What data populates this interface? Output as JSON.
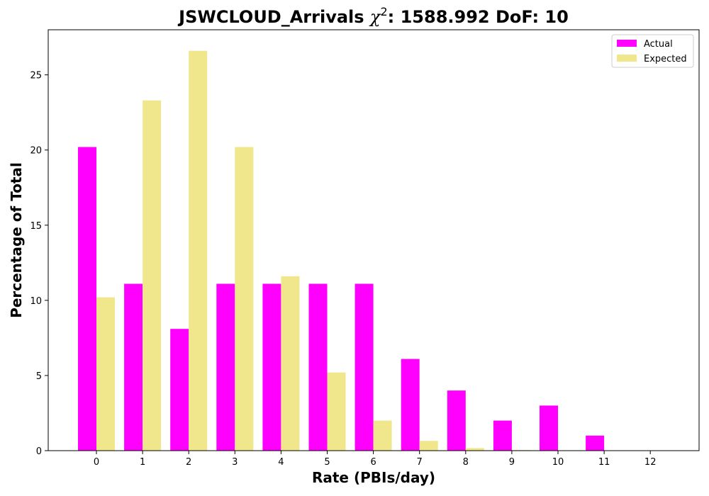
{
  "chart_data": {
    "type": "bar",
    "title_main": "JSWCLOUD_Arrivals ",
    "title_chi": "χ",
    "title_sup": "2",
    "title_rest": ": 1588.992 DoF: 10",
    "xlabel": "Rate (PBIs/day)",
    "ylabel": "Percentage of Total",
    "categories": [
      "0",
      "1",
      "2",
      "3",
      "4",
      "5",
      "6",
      "7",
      "8",
      "9",
      "10",
      "11",
      "12"
    ],
    "ylim": [
      0,
      28
    ],
    "yticks": [
      0,
      5,
      10,
      15,
      20,
      25
    ],
    "grid": false,
    "legend_position": "top-right",
    "series": [
      {
        "name": "Actual",
        "color": "#ff00ff",
        "values": [
          20.2,
          11.1,
          8.1,
          11.1,
          11.1,
          11.1,
          11.1,
          6.1,
          4.0,
          2.0,
          3.0,
          1.0,
          0
        ]
      },
      {
        "name": "Expected",
        "color": "#f0e68c",
        "values": [
          10.2,
          23.3,
          26.6,
          20.2,
          11.6,
          5.2,
          2.0,
          0.65,
          0.17,
          0.04,
          0.01,
          0.002,
          0
        ]
      }
    ]
  }
}
